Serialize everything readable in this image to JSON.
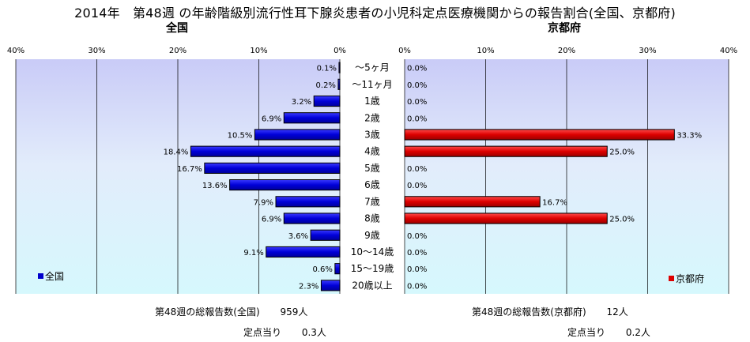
{
  "title": "2014年　第48週 の年齢階級別流行性耳下腺炎患者の小児科定点医療機関からの報告割合(全国、京都府)",
  "chart_data": [
    {
      "type": "bar",
      "orientation": "horizontal",
      "title": "全国",
      "categories": [
        "～5ヶ月",
        "～11ヶ月",
        "1歳",
        "2歳",
        "3歳",
        "4歳",
        "5歳",
        "6歳",
        "7歳",
        "8歳",
        "9歳",
        "10～14歳",
        "15～19歳",
        "20歳以上"
      ],
      "series": [
        {
          "name": "全国",
          "color": "#0000cc",
          "values": [
            0.1,
            0.2,
            3.2,
            6.9,
            10.5,
            18.4,
            16.7,
            13.6,
            7.9,
            6.9,
            3.6,
            9.1,
            0.6,
            2.3
          ]
        }
      ],
      "data_labels": [
        "0.1%",
        "0.2%",
        "3.2%",
        "6.9%",
        "10.5%",
        "18.4%",
        "16.7%",
        "13.6%",
        "7.9%",
        "6.9%",
        "3.6%",
        "9.1%",
        "0.6%",
        "2.3%"
      ],
      "xlim": [
        0,
        40
      ],
      "xaxis_reversed": true,
      "ticks": [
        "40%",
        "30%",
        "20%",
        "10%",
        "0%"
      ],
      "legend_position": "bottom-left",
      "grid": true
    },
    {
      "type": "bar",
      "orientation": "horizontal",
      "title": "京都府",
      "categories": [
        "～5ヶ月",
        "～11ヶ月",
        "1歳",
        "2歳",
        "3歳",
        "4歳",
        "5歳",
        "6歳",
        "7歳",
        "8歳",
        "9歳",
        "10～14歳",
        "15～19歳",
        "20歳以上"
      ],
      "series": [
        {
          "name": "京都府",
          "color": "#dd0000",
          "values": [
            0.0,
            0.0,
            0.0,
            0.0,
            33.3,
            25.0,
            0.0,
            0.0,
            16.7,
            25.0,
            0.0,
            0.0,
            0.0,
            0.0
          ]
        }
      ],
      "data_labels": [
        "0.0%",
        "0.0%",
        "0.0%",
        "0.0%",
        "33.3%",
        "25.0%",
        "0.0%",
        "0.0%",
        "16.7%",
        "25.0%",
        "0.0%",
        "0.0%",
        "0.0%",
        "0.0%"
      ],
      "xlim": [
        0,
        40
      ],
      "xaxis_reversed": false,
      "ticks": [
        "0%",
        "10%",
        "20%",
        "30%",
        "40%"
      ],
      "legend_position": "bottom-right",
      "grid": true
    }
  ],
  "footer": {
    "national_total_label": "第48週の総報告数(全国)",
    "national_total_value": "959人",
    "national_per_site_label": "定点当り",
    "national_per_site_value": "0.3人",
    "kyoto_total_label": "第48週の総報告数(京都府)",
    "kyoto_total_value": "12人",
    "kyoto_per_site_label": "定点当り",
    "kyoto_per_site_value": "0.2人"
  }
}
